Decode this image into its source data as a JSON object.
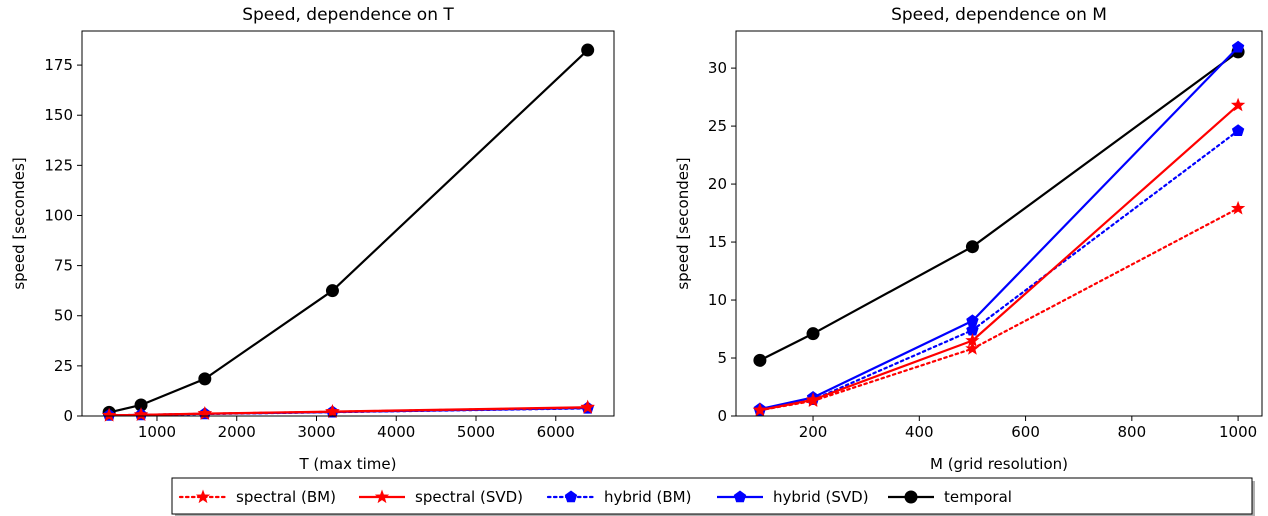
{
  "chart_data": [
    {
      "type": "line",
      "title": "Speed, dependence on T",
      "xlabel": "T (max time)",
      "ylabel": "speed [secondes]",
      "xlim": [
        60,
        6730
      ],
      "ylim": [
        0,
        192
      ],
      "xticks": [
        1000,
        2000,
        3000,
        4000,
        5000,
        6000
      ],
      "yticks": [
        0,
        25,
        50,
        75,
        100,
        125,
        150,
        175
      ],
      "x": [
        400,
        800,
        1600,
        3200,
        6400
      ],
      "series": [
        {
          "key": "spectral_bm",
          "values": [
            0.3,
            0.6,
            1.1,
            2.1,
            4.2
          ]
        },
        {
          "key": "spectral_svd",
          "values": [
            0.3,
            0.6,
            1.2,
            2.2,
            4.4
          ]
        },
        {
          "key": "hybrid_bm",
          "values": [
            0.3,
            0.5,
            1.0,
            1.9,
            3.8
          ]
        },
        {
          "key": "hybrid_svd",
          "values": [
            0.3,
            0.6,
            1.1,
            2.0,
            4.0
          ]
        },
        {
          "key": "temporal",
          "values": [
            1.8,
            5.5,
            18.5,
            62.5,
            182.5
          ]
        }
      ],
      "grid": false
    },
    {
      "type": "line",
      "title": "Speed, dependence on M",
      "xlabel": "M (grid resolution)",
      "ylabel": "speed [secondes]",
      "xlim": [
        55,
        1045
      ],
      "ylim": [
        0,
        33.2
      ],
      "xticks": [
        200,
        400,
        600,
        800,
        1000
      ],
      "yticks": [
        0,
        5,
        10,
        15,
        20,
        25,
        30
      ],
      "x": [
        100,
        200,
        500,
        1000
      ],
      "series": [
        {
          "key": "spectral_bm",
          "values": [
            0.5,
            1.3,
            5.8,
            17.9
          ]
        },
        {
          "key": "spectral_svd",
          "values": [
            0.5,
            1.4,
            6.5,
            26.8
          ]
        },
        {
          "key": "hybrid_bm",
          "values": [
            0.5,
            1.4,
            7.4,
            24.6
          ]
        },
        {
          "key": "hybrid_svd",
          "values": [
            0.6,
            1.6,
            8.2,
            31.8
          ]
        },
        {
          "key": "temporal",
          "values": [
            4.8,
            7.1,
            14.6,
            31.4
          ]
        }
      ],
      "grid": false
    }
  ],
  "legend": {
    "placement": "bottom-center",
    "entries": [
      {
        "key": "spectral_bm",
        "label": "spectral (BM)",
        "color": "#ff0000",
        "linestyle": "dotted",
        "marker": "star"
      },
      {
        "key": "spectral_svd",
        "label": "spectral (SVD)",
        "color": "#ff0000",
        "linestyle": "solid",
        "marker": "star"
      },
      {
        "key": "hybrid_bm",
        "label": "hybrid (BM)",
        "color": "#0000ff",
        "linestyle": "dotted",
        "marker": "pentagon"
      },
      {
        "key": "hybrid_svd",
        "label": "hybrid (SVD)",
        "color": "#0000ff",
        "linestyle": "solid",
        "marker": "pentagon"
      },
      {
        "key": "temporal",
        "label": "temporal",
        "color": "#000000",
        "linestyle": "solid",
        "marker": "circle"
      }
    ]
  }
}
